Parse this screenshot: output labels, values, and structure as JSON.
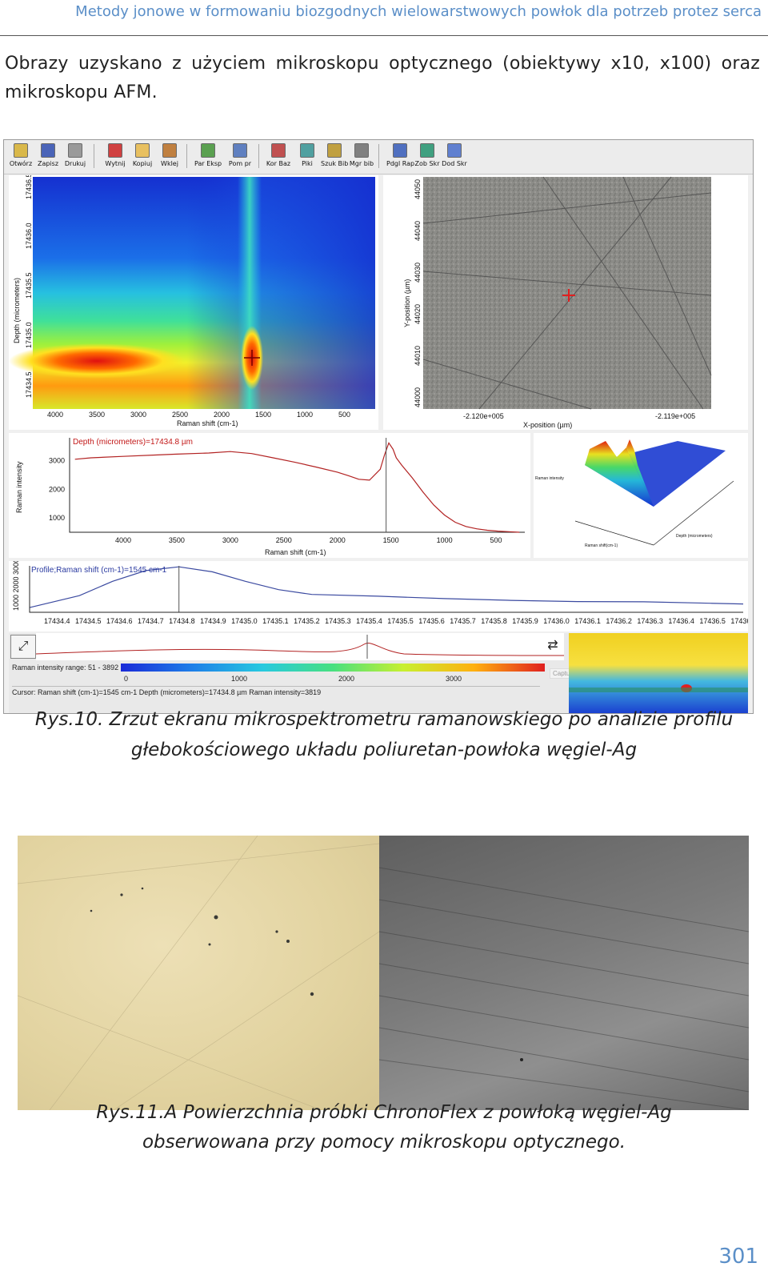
{
  "header": {
    "running_title": "Metody jonowe w formowaniu biozgodnych wielowarstwowych powłok dla potrzeb protez serca"
  },
  "intro": {
    "text": "Obrazy uzyskano z użyciem mikroskopu optycznego (obiektywy x10, x100) oraz mikroskopu AFM."
  },
  "screenshot": {
    "toolbar": [
      {
        "label": "Otwórz",
        "icon": "folder-open-icon"
      },
      {
        "label": "Zapisz",
        "icon": "save-icon"
      },
      {
        "label": "Drukuj",
        "icon": "printer-icon"
      },
      {
        "label": "Wytnij",
        "icon": "cut-icon"
      },
      {
        "label": "Kopiuj",
        "icon": "copy-icon"
      },
      {
        "label": "Wklej",
        "icon": "paste-icon"
      },
      {
        "label": "Par Eksp",
        "icon": "experiment-params-icon"
      },
      {
        "label": "Pom pr",
        "icon": "measure-icon"
      },
      {
        "label": "Kor Baz",
        "icon": "baseline-icon"
      },
      {
        "label": "Piki",
        "icon": "peaks-icon"
      },
      {
        "label": "Szuk Bib",
        "icon": "search-library-icon"
      },
      {
        "label": "Mgr bib",
        "icon": "library-manager-icon"
      },
      {
        "label": "Pdgl Rap",
        "icon": "report-preview-icon"
      },
      {
        "label": "Zob Skr",
        "icon": "view-script-icon"
      },
      {
        "label": "Dod Skr",
        "icon": "add-script-icon"
      }
    ],
    "heatmap": {
      "ylabel": "Depth (micrometers)",
      "yticks": [
        "17436.5",
        "17436.0",
        "17435.5",
        "17435.0",
        "17434.5"
      ],
      "xlabel": "Raman shift (cm-1)",
      "xticks": [
        "4000",
        "3500",
        "3000",
        "2500",
        "2000",
        "1500",
        "1000",
        "500"
      ]
    },
    "microscope": {
      "ylabel": "Y-position (µm)",
      "yticks": [
        "44050",
        "44040",
        "44030",
        "44020",
        "44010",
        "44000"
      ],
      "xlabel": "X-position (µm)",
      "xticks": [
        "-2.120e+005",
        "-2.119e+005"
      ]
    },
    "surface3d": {
      "zlabel": "Raman intensity",
      "xlabel": "Raman shift(cm-1)",
      "ylabel": "Depth (micrometers)"
    },
    "profile_label": "Profile;Raman shift (cm-1)=1545 cm-1",
    "profile_yticks": "1000 2000 3000",
    "intensity_range": "Raman intensity range: 51 - 3892",
    "colorbar_ticks": [
      "0",
      "1000",
      "2000",
      "3000"
    ],
    "status_bar": "Cursor: Raman shift (cm-1)=1545 cm-1  Depth (micrometers)=17434.8 µm  Raman intensity=3819",
    "capture_text": "Capture Now"
  },
  "chart_data": [
    {
      "type": "line",
      "title": "",
      "annotation": "Depth (micrometers)=17434.8 µm",
      "xlabel": "Raman shift (cm-1)",
      "ylabel": "Raman intensity",
      "x_reversed": true,
      "xlim": [
        4500,
        250
      ],
      "ylim": [
        500,
        3800
      ],
      "xticks": [
        4000,
        3500,
        3000,
        2500,
        2000,
        1500,
        1000,
        500
      ],
      "yticks": [
        1000,
        2000,
        3000
      ],
      "cursor_x": 1545,
      "x": [
        4450,
        4300,
        4000,
        3700,
        3500,
        3200,
        3000,
        2800,
        2600,
        2400,
        2200,
        2000,
        1900,
        1800,
        1700,
        1600,
        1560,
        1520,
        1480,
        1450,
        1400,
        1300,
        1200,
        1100,
        1000,
        900,
        800,
        700,
        600,
        500,
        400,
        300
      ],
      "values": [
        3050,
        3100,
        3150,
        3200,
        3230,
        3270,
        3320,
        3250,
        3100,
        2950,
        2780,
        2600,
        2480,
        2350,
        2320,
        2700,
        3200,
        3620,
        3400,
        3100,
        2850,
        2400,
        1900,
        1450,
        1100,
        850,
        700,
        620,
        570,
        540,
        520,
        500
      ]
    },
    {
      "type": "line",
      "title": "",
      "annotation": "Profile;Raman shift (cm-1)=1545 cm-1",
      "xlabel": "Depth (micrometers)",
      "ylabel": "Raman intensity",
      "xlim": [
        17434.35,
        17436.5
      ],
      "ylim": [
        0,
        3900
      ],
      "xticks": [
        "17434.4",
        "17434.5",
        "17434.6",
        "17434.7",
        "17434.8",
        "17434.9",
        "17435.0",
        "17435.1",
        "17435.2",
        "17435.3",
        "17435.4",
        "17435.5",
        "17435.6",
        "17435.7",
        "17435.8",
        "17435.9",
        "17436.0",
        "17436.1",
        "17436.2",
        "17436.3",
        "17436.4",
        "17436.5",
        "17436"
      ],
      "cursor_x": 17434.8,
      "x": [
        17434.35,
        17434.5,
        17434.6,
        17434.7,
        17434.8,
        17434.9,
        17435.0,
        17435.1,
        17435.2,
        17435.4,
        17435.6,
        17435.8,
        17436.0,
        17436.2,
        17436.4,
        17436.5
      ],
      "values": [
        400,
        1400,
        2600,
        3500,
        3819,
        3400,
        2600,
        1900,
        1500,
        1350,
        1150,
        1000,
        900,
        880,
        760,
        700
      ]
    }
  ],
  "fig10_caption": {
    "line1": "Rys.10. Zrzut ekranu mikrospektrometru ramanowskiego po analizie profilu",
    "line2": "głebokościowego układu poliuretan-powłoka węgiel-Ag"
  },
  "fig11_caption": {
    "line1": "Rys.11.A Powierzchnia próbki ChronoFlex z powłoką węgiel-Ag",
    "line2": "obserwowana przy pomocy mikroskopu optycznego."
  },
  "page_number": "301",
  "colors": {
    "header_blue": "#5b8fc8",
    "spectrum_red": "#b22222",
    "profile_blue": "#3b4aa0"
  }
}
